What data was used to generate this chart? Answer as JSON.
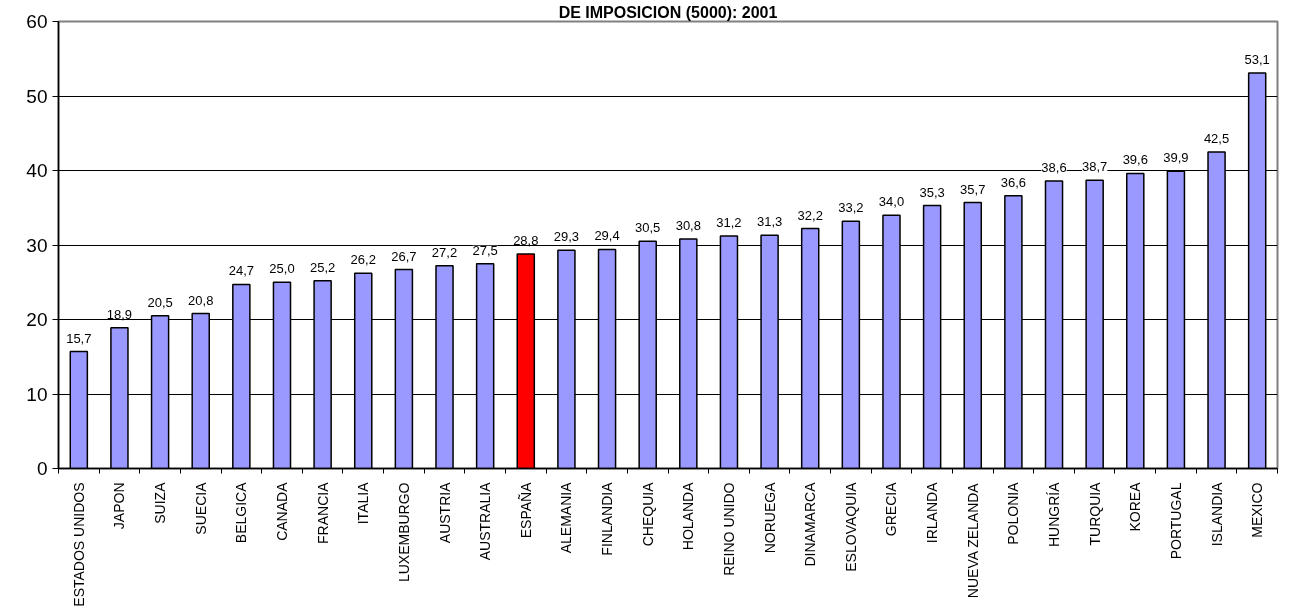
{
  "chart_data": {
    "type": "bar",
    "title": "DE IMPOSICION (5000): 2001",
    "categories": [
      "ESTADOS UNIDOS",
      "JAPON",
      "SUIZA",
      "SUECIA",
      "BELGICA",
      "CANADA",
      "FRANCIA",
      "ITALIA",
      "LUXEMBURGO",
      "AUSTRIA",
      "AUSTRALIA",
      "ESPAÑA",
      "ALEMANIA",
      "FINLANDIA",
      "CHEQUIA",
      "HOLANDA",
      "REINO UNIDO",
      "NORUEGA",
      "DINAMARCA",
      "ESLOVAQUIA",
      "GRECIA",
      "IRLANDA",
      "NUEVA ZELANDA",
      "POLONIA",
      "HUNGRÍA",
      "TURQUIA",
      "KOREA",
      "PORTUGAL",
      "ISLANDIA",
      "MEXICO"
    ],
    "values": [
      15.7,
      18.9,
      20.5,
      20.8,
      24.7,
      25.0,
      25.2,
      26.2,
      26.7,
      27.2,
      27.5,
      28.8,
      29.3,
      29.4,
      30.5,
      30.8,
      31.2,
      31.3,
      32.2,
      33.2,
      34.0,
      35.3,
      35.7,
      36.6,
      38.6,
      38.7,
      39.6,
      39.9,
      42.5,
      53.1
    ],
    "value_labels": [
      "15,7",
      "18,9",
      "20,5",
      "20,8",
      "24,7",
      "25,0",
      "25,2",
      "26,2",
      "26,7",
      "27,2",
      "27,5",
      "28,8",
      "29,3",
      "29,4",
      "30,5",
      "30,8",
      "31,2",
      "31,3",
      "32,2",
      "33,2",
      "34,0",
      "35,3",
      "35,7",
      "36,6",
      "38,6",
      "38,7",
      "39,6",
      "39,9",
      "42,5",
      "53,1"
    ],
    "colors": [
      "#9999ff",
      "#9999ff",
      "#9999ff",
      "#9999ff",
      "#9999ff",
      "#9999ff",
      "#9999ff",
      "#9999ff",
      "#9999ff",
      "#9999ff",
      "#9999ff",
      "#ff0000",
      "#9999ff",
      "#9999ff",
      "#9999ff",
      "#9999ff",
      "#9999ff",
      "#9999ff",
      "#9999ff",
      "#9999ff",
      "#9999ff",
      "#9999ff",
      "#9999ff",
      "#9999ff",
      "#9999ff",
      "#9999ff",
      "#9999ff",
      "#9999ff",
      "#9999ff",
      "#9999ff"
    ],
    "ylim": [
      0,
      60
    ],
    "yticks": [
      0,
      10,
      20,
      30,
      40,
      50,
      60
    ],
    "grid": "y"
  }
}
